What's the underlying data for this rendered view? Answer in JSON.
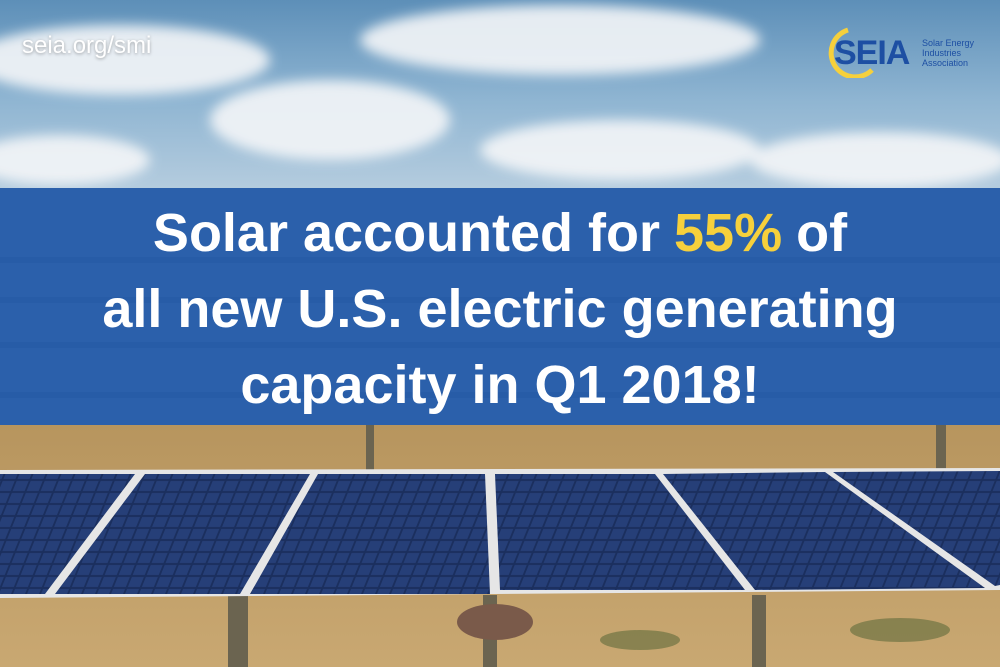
{
  "url": "seia.org/smi",
  "logo": {
    "mark": "SEIA",
    "lines": [
      "Solar Energy",
      "Industries",
      "Association"
    ]
  },
  "headline": {
    "lines": [
      [
        "Solar accounted for",
        "55%",
        "of"
      ],
      [
        "all new U.S. electric generating"
      ],
      [
        "capacity in Q1 2018!"
      ]
    ]
  }
}
